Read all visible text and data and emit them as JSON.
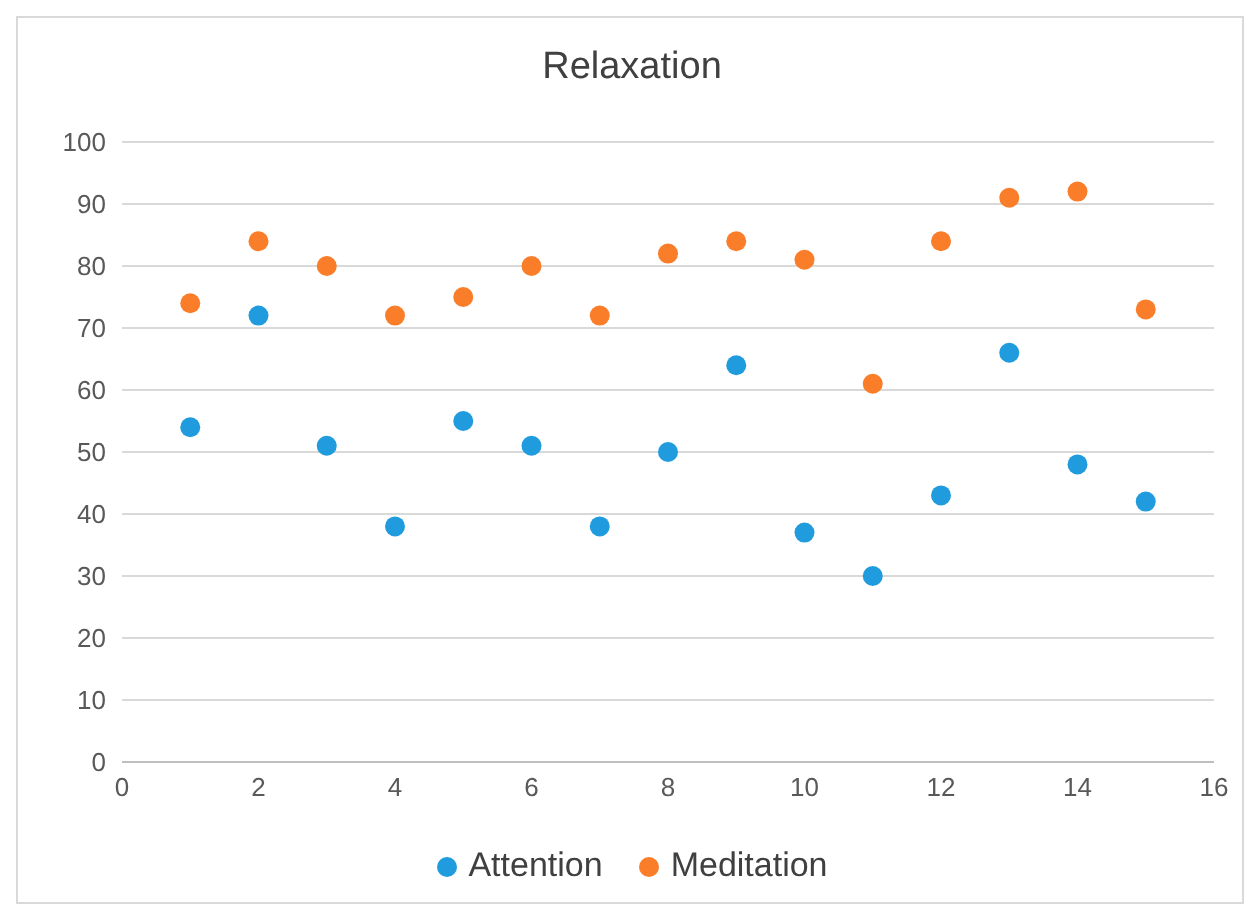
{
  "chart_data": {
    "type": "scatter",
    "title": "Relaxation",
    "x": [
      1,
      2,
      3,
      4,
      5,
      6,
      7,
      8,
      9,
      10,
      11,
      12,
      13,
      14,
      15
    ],
    "series": [
      {
        "name": "Attention",
        "color": "#1f9bde",
        "values": [
          54,
          72,
          51,
          38,
          55,
          51,
          38,
          50,
          64,
          37,
          30,
          43,
          66,
          48,
          42
        ]
      },
      {
        "name": "Meditation",
        "color": "#fa7d2a",
        "values": [
          74,
          84,
          80,
          72,
          75,
          80,
          72,
          82,
          84,
          81,
          61,
          84,
          91,
          92,
          73
        ]
      }
    ],
    "xlim": [
      0,
      16
    ],
    "xticks": [
      0,
      2,
      4,
      6,
      8,
      10,
      12,
      14,
      16
    ],
    "ylim": [
      0,
      100
    ],
    "yticks": [
      0,
      10,
      20,
      30,
      40,
      50,
      60,
      70,
      80,
      90,
      100
    ],
    "grid": "y",
    "legend": "bottom",
    "marker": "circle"
  }
}
